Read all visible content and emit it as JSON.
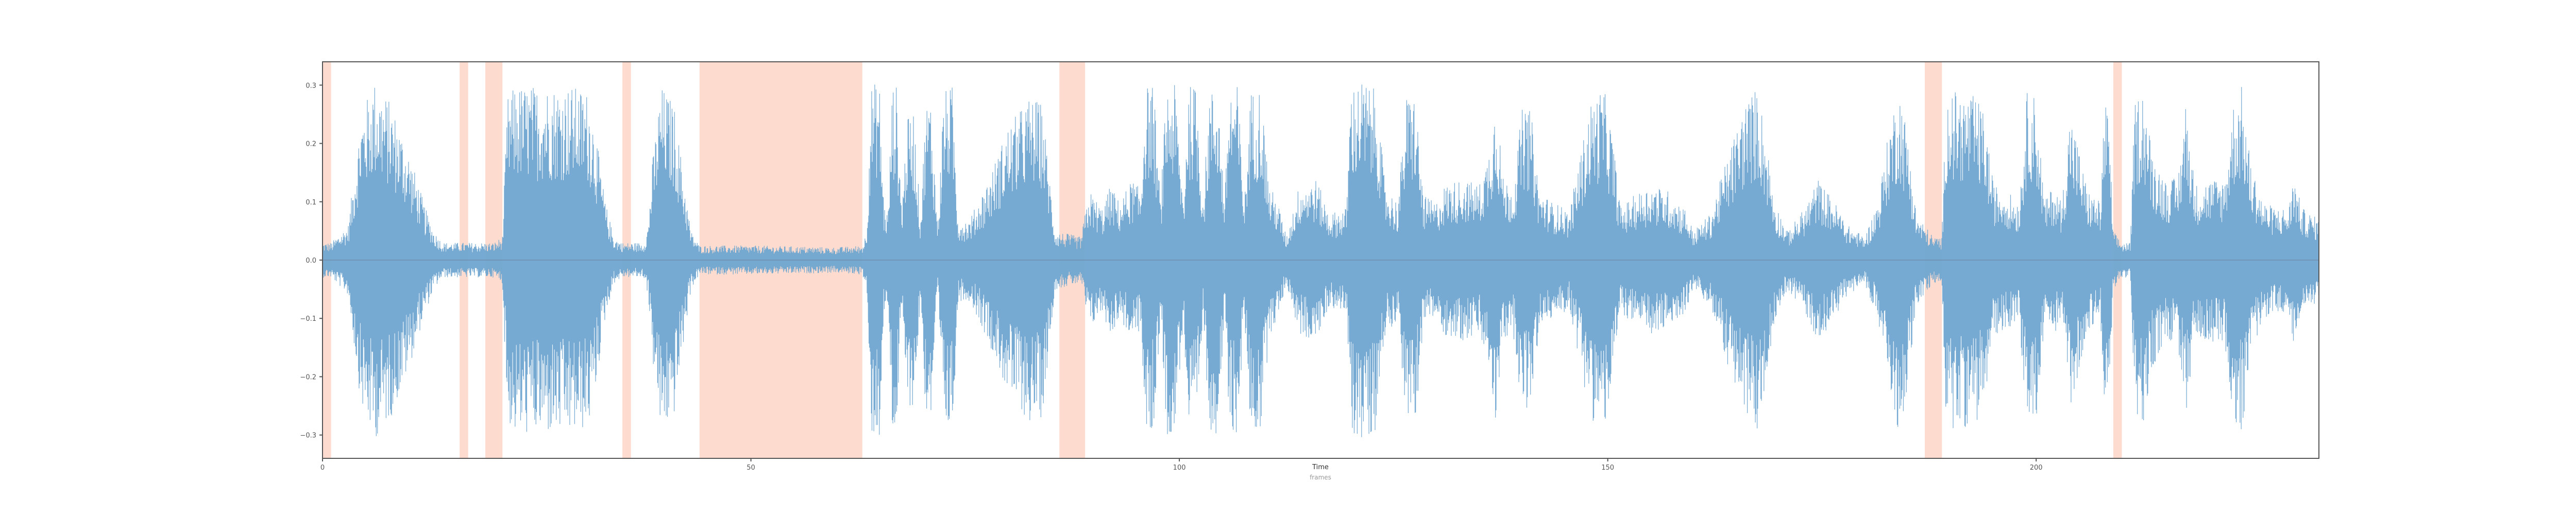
{
  "chart_data": {
    "type": "area",
    "title": "",
    "xlabel": "Time",
    "xlabel_sub": "frames",
    "ylabel": "",
    "xlim": [
      0,
      233
    ],
    "ylim": [
      -0.34,
      0.34
    ],
    "x_ticks": [
      0,
      50,
      100,
      150,
      200
    ],
    "y_ticks": [
      -0.3,
      -0.2,
      -0.1,
      0.0,
      0.1,
      0.2,
      0.3
    ],
    "y_tick_labels": [
      "−0.3",
      "−0.2",
      "−0.1",
      "0.0",
      "0.1",
      "0.2",
      "0.3"
    ],
    "grid": false,
    "series": [
      {
        "kind": "waveform",
        "color": "#6fa5d0",
        "envelope": [
          [
            0,
            0.03
          ],
          [
            1,
            0.03
          ],
          [
            3,
            0.06
          ],
          [
            4.5,
            0.25
          ],
          [
            6,
            0.31
          ],
          [
            8,
            0.27
          ],
          [
            10,
            0.19
          ],
          [
            12,
            0.09
          ],
          [
            13,
            0.05
          ],
          [
            14,
            0.03
          ],
          [
            16,
            0.03
          ],
          [
            17,
            0.03
          ],
          [
            18,
            0.03
          ],
          [
            20,
            0.03
          ],
          [
            21,
            0.04
          ],
          [
            21.6,
            0.28
          ],
          [
            22.5,
            0.3
          ],
          [
            26,
            0.3
          ],
          [
            29,
            0.3
          ],
          [
            31,
            0.29
          ],
          [
            31.8,
            0.23
          ],
          [
            33,
            0.1
          ],
          [
            34,
            0.04
          ],
          [
            35,
            0.03
          ],
          [
            37,
            0.03
          ],
          [
            37.5,
            0.03
          ],
          [
            38,
            0.06
          ],
          [
            38.5,
            0.17
          ],
          [
            39.5,
            0.3
          ],
          [
            41,
            0.27
          ],
          [
            42,
            0.16
          ],
          [
            43,
            0.05
          ],
          [
            44,
            0.025
          ],
          [
            50,
            0.025
          ],
          [
            60,
            0.022
          ],
          [
            63,
            0.025
          ],
          [
            63.5,
            0.05
          ],
          [
            64,
            0.3
          ],
          [
            65,
            0.31
          ],
          [
            65.5,
            0.1
          ],
          [
            66,
            0.08
          ],
          [
            66.5,
            0.3
          ],
          [
            67,
            0.3
          ],
          [
            67.6,
            0.09
          ],
          [
            68.2,
            0.24
          ],
          [
            69,
            0.26
          ],
          [
            69.8,
            0.07
          ],
          [
            70.4,
            0.27
          ],
          [
            71,
            0.28
          ],
          [
            71.8,
            0.06
          ],
          [
            72.5,
            0.29
          ],
          [
            73.5,
            0.3
          ],
          [
            74.2,
            0.07
          ],
          [
            75.5,
            0.07
          ],
          [
            76.5,
            0.1
          ],
          [
            78,
            0.15
          ],
          [
            80,
            0.23
          ],
          [
            82.5,
            0.28
          ],
          [
            84,
            0.27
          ],
          [
            85.5,
            0.05
          ],
          [
            88.5,
            0.04
          ],
          [
            89.5,
            0.12
          ],
          [
            91,
            0.09
          ],
          [
            92,
            0.13
          ],
          [
            93,
            0.1
          ],
          [
            94.5,
            0.14
          ],
          [
            95.5,
            0.12
          ],
          [
            96,
            0.3
          ],
          [
            97,
            0.3
          ],
          [
            97.8,
            0.1
          ],
          [
            98.5,
            0.3
          ],
          [
            99.5,
            0.3
          ],
          [
            100.5,
            0.1
          ],
          [
            101,
            0.3
          ],
          [
            102,
            0.3
          ],
          [
            102.8,
            0.1
          ],
          [
            103.5,
            0.29
          ],
          [
            104.5,
            0.3
          ],
          [
            105.3,
            0.1
          ],
          [
            105.8,
            0.3
          ],
          [
            106.8,
            0.3
          ],
          [
            107.6,
            0.1
          ],
          [
            108.3,
            0.29
          ],
          [
            109.5,
            0.3
          ],
          [
            110.5,
            0.13
          ],
          [
            111.5,
            0.1
          ],
          [
            112.5,
            0.04
          ],
          [
            114,
            0.13
          ],
          [
            116,
            0.14
          ],
          [
            117.5,
            0.08
          ],
          [
            119.5,
            0.09
          ],
          [
            120,
            0.3
          ],
          [
            121.5,
            0.31
          ],
          [
            123,
            0.29
          ],
          [
            124,
            0.13
          ],
          [
            125.5,
            0.1
          ],
          [
            126.5,
            0.28
          ],
          [
            127.5,
            0.29
          ],
          [
            128.5,
            0.11
          ],
          [
            130,
            0.1
          ],
          [
            131,
            0.13
          ],
          [
            133,
            0.14
          ],
          [
            135,
            0.13
          ],
          [
            136,
            0.18
          ],
          [
            137,
            0.29
          ],
          [
            137.8,
            0.14
          ],
          [
            139,
            0.13
          ],
          [
            140,
            0.26
          ],
          [
            141,
            0.26
          ],
          [
            142,
            0.12
          ],
          [
            143.5,
            0.1
          ],
          [
            145,
            0.09
          ],
          [
            145.5,
            0.08
          ],
          [
            146.5,
            0.16
          ],
          [
            148,
            0.27
          ],
          [
            149.5,
            0.3
          ],
          [
            150.5,
            0.22
          ],
          [
            151.5,
            0.09
          ],
          [
            153,
            0.11
          ],
          [
            155,
            0.13
          ],
          [
            157,
            0.12
          ],
          [
            159,
            0.09
          ],
          [
            160,
            0.05
          ],
          [
            162,
            0.08
          ],
          [
            164,
            0.18
          ],
          [
            166,
            0.27
          ],
          [
            167.5,
            0.3
          ],
          [
            168.5,
            0.21
          ],
          [
            169.5,
            0.1
          ],
          [
            171,
            0.05
          ],
          [
            173,
            0.09
          ],
          [
            174.5,
            0.14
          ],
          [
            176.5,
            0.1
          ],
          [
            178,
            0.06
          ],
          [
            180,
            0.04
          ],
          [
            181.5,
            0.1
          ],
          [
            183,
            0.24
          ],
          [
            184,
            0.3
          ],
          [
            185,
            0.22
          ],
          [
            186,
            0.08
          ],
          [
            188,
            0.04
          ],
          [
            189,
            0.04
          ],
          [
            189.5,
            0.29
          ],
          [
            191,
            0.29
          ],
          [
            193,
            0.28
          ],
          [
            194,
            0.25
          ],
          [
            195,
            0.13
          ],
          [
            196.5,
            0.12
          ],
          [
            198,
            0.1
          ],
          [
            199,
            0.3
          ],
          [
            200,
            0.28
          ],
          [
            201,
            0.1
          ],
          [
            202,
            0.13
          ],
          [
            203,
            0.1
          ],
          [
            204,
            0.26
          ],
          [
            205,
            0.19
          ],
          [
            206,
            0.12
          ],
          [
            207.5,
            0.1
          ],
          [
            208,
            0.28
          ],
          [
            208.5,
            0.24
          ],
          [
            209,
            0.05
          ],
          [
            210,
            0.03
          ],
          [
            211,
            0.03
          ],
          [
            211.5,
            0.27
          ],
          [
            212.5,
            0.3
          ],
          [
            213.5,
            0.19
          ],
          [
            215,
            0.14
          ],
          [
            216.5,
            0.14
          ],
          [
            217.5,
            0.28
          ],
          [
            218.5,
            0.13
          ],
          [
            220.5,
            0.14
          ],
          [
            222,
            0.14
          ],
          [
            223,
            0.27
          ],
          [
            224,
            0.3
          ],
          [
            225,
            0.17
          ],
          [
            226.5,
            0.1
          ],
          [
            228,
            0.09
          ],
          [
            229.5,
            0.09
          ],
          [
            230,
            0.15
          ],
          [
            231,
            0.09
          ],
          [
            233,
            0.07
          ]
        ]
      }
    ],
    "highlight_regions": [
      {
        "color": "#fddccf",
        "x": [
          0,
          1
        ]
      },
      {
        "color": "#fddccf",
        "x": [
          16,
          17
        ]
      },
      {
        "color": "#fddccf",
        "x": [
          19,
          21
        ]
      },
      {
        "color": "#fddccf",
        "x": [
          35,
          36
        ]
      },
      {
        "color": "#fddccf",
        "x": [
          44,
          63
        ]
      },
      {
        "color": "#fddccf",
        "x": [
          86,
          89
        ]
      },
      {
        "color": "#fddccf",
        "x": [
          187,
          189
        ]
      },
      {
        "color": "#fddccf",
        "x": [
          209,
          210
        ]
      }
    ]
  }
}
